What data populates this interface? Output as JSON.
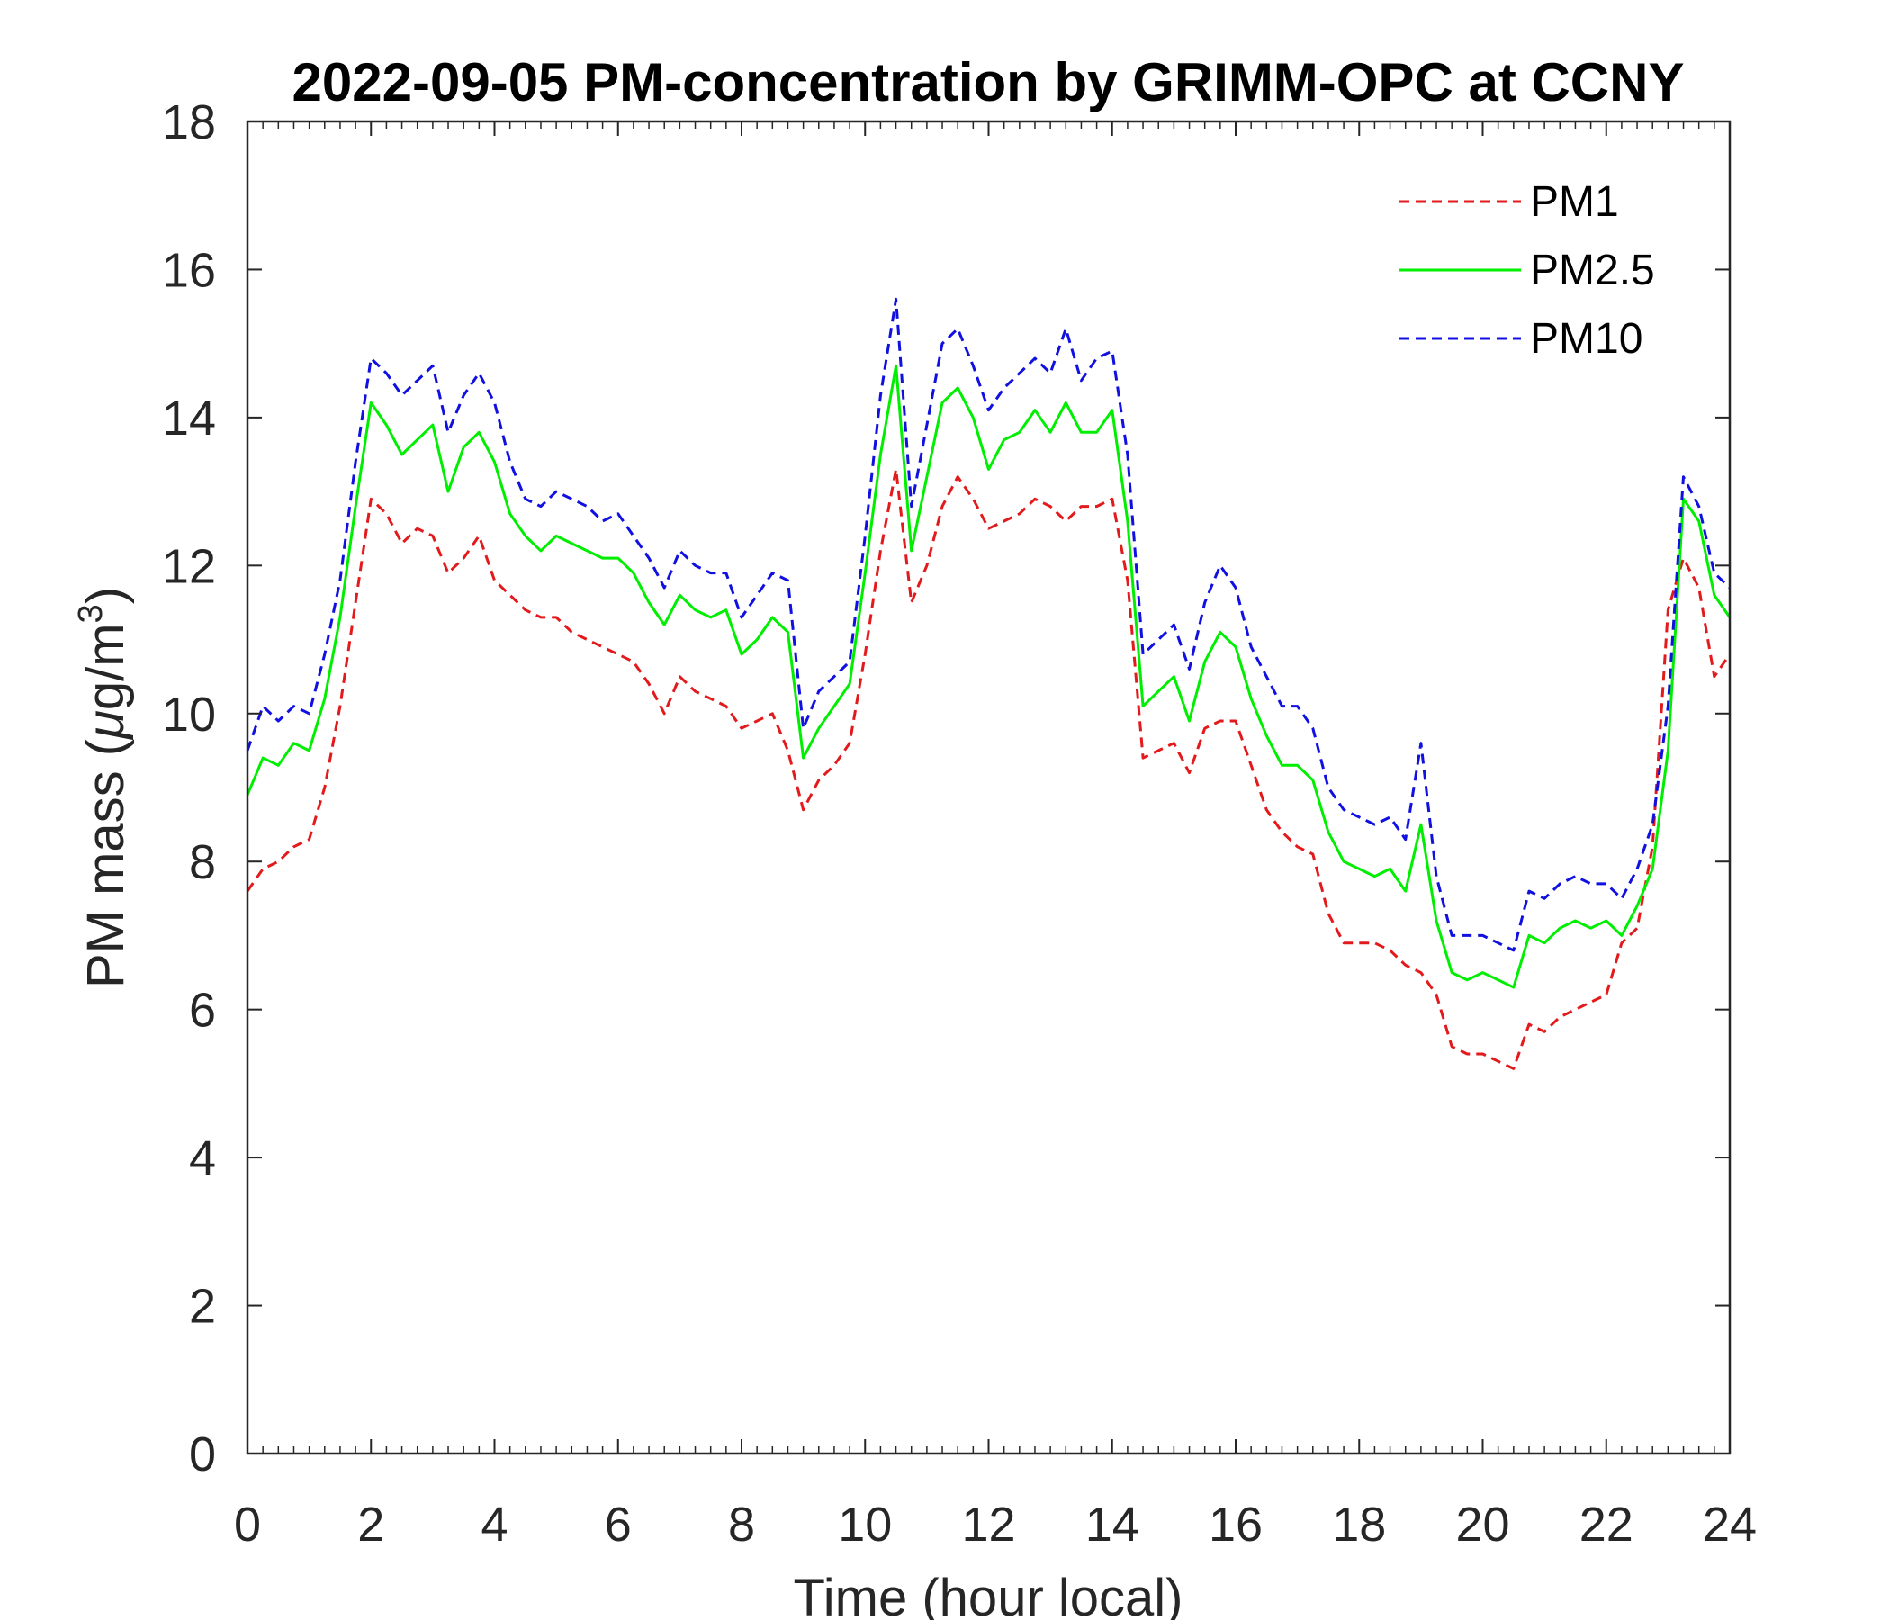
{
  "chart_data": {
    "type": "line",
    "title": "2022-09-05 PM-concentration by GRIMM-OPC at CCNY",
    "xlabel": "Time (hour local)",
    "ylabel": "PM mass (μg/m³)",
    "ylabel_parts": {
      "main": "PM mass (",
      "mu": "μ",
      "unit": "g/m",
      "sup": "3",
      "close": ")"
    },
    "xlim": [
      0,
      24
    ],
    "ylim": [
      0,
      18
    ],
    "xticks": [
      0,
      2,
      4,
      6,
      8,
      10,
      12,
      14,
      16,
      18,
      20,
      22,
      24
    ],
    "yticks": [
      0,
      2,
      4,
      6,
      8,
      10,
      12,
      14,
      16,
      18
    ],
    "grid": false,
    "legend_position": "top-right",
    "series": [
      {
        "name": "PM1",
        "color": "#e31a1c",
        "dash": "dashed",
        "x": [
          0,
          0.25,
          0.5,
          0.75,
          1,
          1.25,
          1.5,
          1.75,
          2,
          2.25,
          2.5,
          2.75,
          3,
          3.25,
          3.5,
          3.75,
          4,
          4.25,
          4.5,
          4.75,
          5,
          5.25,
          5.5,
          5.75,
          6,
          6.25,
          6.5,
          6.75,
          7,
          7.25,
          7.5,
          7.75,
          8,
          8.25,
          8.5,
          8.75,
          9,
          9.25,
          9.5,
          9.75,
          10,
          10.25,
          10.5,
          10.75,
          11,
          11.25,
          11.5,
          11.75,
          12,
          12.25,
          12.5,
          12.75,
          13,
          13.25,
          13.5,
          13.75,
          14,
          14.25,
          14.5,
          14.75,
          15,
          15.25,
          15.5,
          15.75,
          16,
          16.25,
          16.5,
          16.75,
          17,
          17.25,
          17.5,
          17.75,
          18,
          18.25,
          18.5,
          18.75,
          19,
          19.25,
          19.5,
          19.75,
          20,
          20.25,
          20.5,
          20.75,
          21,
          21.25,
          21.5,
          21.75,
          22,
          22.25,
          22.5,
          22.75,
          23,
          23.25,
          23.5,
          23.75,
          24
        ],
        "values": [
          7.6,
          7.9,
          8.0,
          8.2,
          8.3,
          9.0,
          10.1,
          11.5,
          12.9,
          12.7,
          12.3,
          12.5,
          12.4,
          11.9,
          12.1,
          12.4,
          11.8,
          11.6,
          11.4,
          11.3,
          11.3,
          11.1,
          11.0,
          10.9,
          10.8,
          10.7,
          10.4,
          10.0,
          10.5,
          10.3,
          10.2,
          10.1,
          9.8,
          9.9,
          10.0,
          9.5,
          8.7,
          9.1,
          9.3,
          9.6,
          10.8,
          12.2,
          13.3,
          11.5,
          12.0,
          12.8,
          13.2,
          12.9,
          12.5,
          12.6,
          12.7,
          12.9,
          12.8,
          12.6,
          12.8,
          12.8,
          12.9,
          11.8,
          9.4,
          9.5,
          9.6,
          9.2,
          9.8,
          9.9,
          9.9,
          9.3,
          8.7,
          8.4,
          8.2,
          8.1,
          7.3,
          6.9,
          6.9,
          6.9,
          6.8,
          6.6,
          6.5,
          6.2,
          5.5,
          5.4,
          5.4,
          5.3,
          5.2,
          5.8,
          5.7,
          5.9,
          6.0,
          6.1,
          6.2,
          6.9,
          7.1,
          8.2,
          11.4,
          12.1,
          11.7,
          10.5,
          10.8
        ]
      },
      {
        "name": "PM2.5",
        "color": "#00ee00",
        "dash": "solid",
        "x": [
          0,
          0.25,
          0.5,
          0.75,
          1,
          1.25,
          1.5,
          1.75,
          2,
          2.25,
          2.5,
          2.75,
          3,
          3.25,
          3.5,
          3.75,
          4,
          4.25,
          4.5,
          4.75,
          5,
          5.25,
          5.5,
          5.75,
          6,
          6.25,
          6.5,
          6.75,
          7,
          7.25,
          7.5,
          7.75,
          8,
          8.25,
          8.5,
          8.75,
          9,
          9.25,
          9.5,
          9.75,
          10,
          10.25,
          10.5,
          10.75,
          11,
          11.25,
          11.5,
          11.75,
          12,
          12.25,
          12.5,
          12.75,
          13,
          13.25,
          13.5,
          13.75,
          14,
          14.25,
          14.5,
          14.75,
          15,
          15.25,
          15.5,
          15.75,
          16,
          16.25,
          16.5,
          16.75,
          17,
          17.25,
          17.5,
          17.75,
          18,
          18.25,
          18.5,
          18.75,
          19,
          19.25,
          19.5,
          19.75,
          20,
          20.25,
          20.5,
          20.75,
          21,
          21.25,
          21.5,
          21.75,
          22,
          22.25,
          22.5,
          22.75,
          23,
          23.25,
          23.5,
          23.75,
          24
        ],
        "values": [
          8.9,
          9.4,
          9.3,
          9.6,
          9.5,
          10.2,
          11.3,
          12.8,
          14.2,
          13.9,
          13.5,
          13.7,
          13.9,
          13.0,
          13.6,
          13.8,
          13.4,
          12.7,
          12.4,
          12.2,
          12.4,
          12.3,
          12.2,
          12.1,
          12.1,
          11.9,
          11.5,
          11.2,
          11.6,
          11.4,
          11.3,
          11.4,
          10.8,
          11.0,
          11.3,
          11.1,
          9.4,
          9.8,
          10.1,
          10.4,
          11.9,
          13.5,
          14.7,
          12.2,
          13.2,
          14.2,
          14.4,
          14.0,
          13.3,
          13.7,
          13.8,
          14.1,
          13.8,
          14.2,
          13.8,
          13.8,
          14.1,
          12.6,
          10.1,
          10.3,
          10.5,
          9.9,
          10.7,
          11.1,
          10.9,
          10.2,
          9.7,
          9.3,
          9.3,
          9.1,
          8.4,
          8.0,
          7.9,
          7.8,
          7.9,
          7.6,
          8.5,
          7.2,
          6.5,
          6.4,
          6.5,
          6.4,
          6.3,
          7.0,
          6.9,
          7.1,
          7.2,
          7.1,
          7.2,
          7.0,
          7.4,
          7.9,
          9.5,
          12.9,
          12.6,
          11.6,
          11.3
        ]
      },
      {
        "name": "PM10",
        "color": "#1010e0",
        "dash": "dashed",
        "x": [
          0,
          0.25,
          0.5,
          0.75,
          1,
          1.25,
          1.5,
          1.75,
          2,
          2.25,
          2.5,
          2.75,
          3,
          3.25,
          3.5,
          3.75,
          4,
          4.25,
          4.5,
          4.75,
          5,
          5.25,
          5.5,
          5.75,
          6,
          6.25,
          6.5,
          6.75,
          7,
          7.25,
          7.5,
          7.75,
          8,
          8.25,
          8.5,
          8.75,
          9,
          9.25,
          9.5,
          9.75,
          10,
          10.25,
          10.5,
          10.75,
          11,
          11.25,
          11.5,
          11.75,
          12,
          12.25,
          12.5,
          12.75,
          13,
          13.25,
          13.5,
          13.75,
          14,
          14.25,
          14.5,
          14.75,
          15,
          15.25,
          15.5,
          15.75,
          16,
          16.25,
          16.5,
          16.75,
          17,
          17.25,
          17.5,
          17.75,
          18,
          18.25,
          18.5,
          18.75,
          19,
          19.25,
          19.5,
          19.75,
          20,
          20.25,
          20.5,
          20.75,
          21,
          21.25,
          21.5,
          21.75,
          22,
          22.25,
          22.5,
          22.75,
          23,
          23.25,
          23.5,
          23.75,
          24
        ],
        "values": [
          9.5,
          10.1,
          9.9,
          10.1,
          10.0,
          10.8,
          11.8,
          13.4,
          14.8,
          14.6,
          14.3,
          14.5,
          14.7,
          13.8,
          14.3,
          14.6,
          14.2,
          13.4,
          12.9,
          12.8,
          13.0,
          12.9,
          12.8,
          12.6,
          12.7,
          12.4,
          12.1,
          11.7,
          12.2,
          12.0,
          11.9,
          11.9,
          11.3,
          11.6,
          11.9,
          11.8,
          9.8,
          10.3,
          10.5,
          10.7,
          12.4,
          14.3,
          15.6,
          12.8,
          13.9,
          15.0,
          15.2,
          14.7,
          14.1,
          14.4,
          14.6,
          14.8,
          14.6,
          15.2,
          14.5,
          14.8,
          14.9,
          13.5,
          10.8,
          11.0,
          11.2,
          10.6,
          11.5,
          12.0,
          11.7,
          10.9,
          10.5,
          10.1,
          10.1,
          9.8,
          9.0,
          8.7,
          8.6,
          8.5,
          8.6,
          8.3,
          9.6,
          7.8,
          7.0,
          7.0,
          7.0,
          6.9,
          6.8,
          7.6,
          7.5,
          7.7,
          7.8,
          7.7,
          7.7,
          7.5,
          7.9,
          8.5,
          10.1,
          13.2,
          12.8,
          11.9,
          11.7
        ]
      }
    ]
  }
}
